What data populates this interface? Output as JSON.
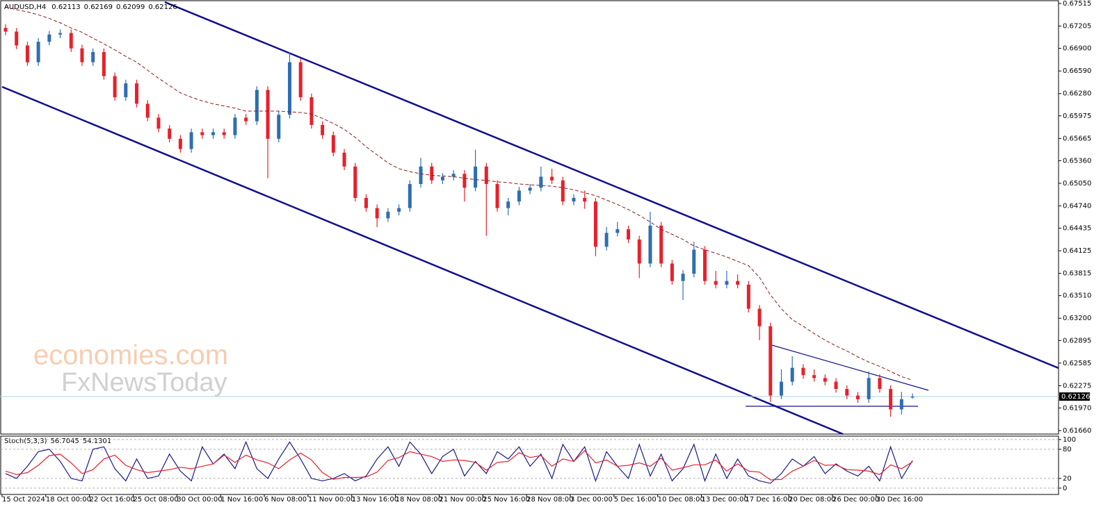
{
  "chart_data": [
    {
      "type": "candlestick",
      "title": "AUDUSD,H4",
      "categories": [
        "15 Oct 2024",
        null,
        null,
        null,
        "18 Oct 00:00",
        null,
        null,
        null,
        "22 Oct 16:00",
        null,
        null,
        null,
        "25 Oct 08:00",
        null,
        null,
        null,
        "30 Oct 00:00",
        null,
        null,
        null,
        "1 Nov 16:00",
        null,
        null,
        null,
        "6 Nov 08:00",
        null,
        null,
        null,
        "11 Nov 00:00",
        null,
        null,
        null,
        "13 Nov 16:00",
        null,
        null,
        null,
        "18 Nov 08:00",
        null,
        null,
        null,
        "21 Nov 00:00",
        null,
        null,
        null,
        "25 Nov 16:00",
        null,
        null,
        null,
        "28 Nov 08:00",
        null,
        null,
        null,
        "3 Dec 00:00",
        null,
        null,
        null,
        "5 Dec 16:00",
        null,
        null,
        null,
        "10 Dec 08:00",
        null,
        null,
        null,
        "13 Dec 00:00",
        null,
        null,
        null,
        "17 Dec 16:00",
        null,
        null,
        null,
        "20 Dec 08:00",
        null,
        null,
        null,
        "26 Dec 00:00",
        null,
        null,
        null,
        "30 Dec 16:00",
        null,
        null,
        null
      ],
      "open": [
        0.6718,
        0.6713,
        0.6694,
        0.6671,
        0.6699,
        0.6709,
        0.6711,
        0.669,
        0.6671,
        0.6685,
        0.6652,
        0.6623,
        0.6642,
        0.6614,
        0.6595,
        0.658,
        0.6566,
        0.6552,
        0.6575,
        0.6571,
        0.6575,
        0.6571,
        0.6595,
        0.659,
        0.6633,
        0.6566,
        0.6599,
        0.6671,
        0.6623,
        0.6585,
        0.6571,
        0.6547,
        0.6528,
        0.6485,
        0.6471,
        0.6457,
        0.6466,
        0.6471,
        0.6504,
        0.6528,
        0.6509,
        0.6514,
        0.6518,
        0.6499,
        0.6528,
        0.6504,
        0.6471,
        0.648,
        0.6495,
        0.6499,
        0.6514,
        0.6509,
        0.648,
        0.6485,
        0.648,
        0.6418,
        0.6437,
        0.6442,
        0.6428,
        0.6395,
        0.6447,
        0.6395,
        0.6371,
        0.6381,
        0.6414,
        0.6371,
        0.6366,
        0.6371,
        0.6366,
        0.6333,
        0.6309,
        0.6214,
        0.6233,
        0.6252,
        0.6242,
        0.6238,
        0.6233,
        0.6223,
        0.6214,
        0.6209,
        0.6238,
        0.6223,
        0.6195,
        0.62113
      ],
      "high": [
        0.6723,
        0.6718,
        0.6699,
        0.6704,
        0.6714,
        0.6716,
        0.6716,
        0.6695,
        0.669,
        0.669,
        0.6657,
        0.6647,
        0.6647,
        0.6619,
        0.66,
        0.6585,
        0.6571,
        0.658,
        0.658,
        0.658,
        0.658,
        0.66,
        0.66,
        0.6638,
        0.6638,
        0.6604,
        0.6685,
        0.6676,
        0.6628,
        0.659,
        0.6576,
        0.6552,
        0.6533,
        0.649,
        0.6476,
        0.6471,
        0.6476,
        0.6509,
        0.654,
        0.6533,
        0.6519,
        0.6523,
        0.6523,
        0.6551,
        0.6533,
        0.6509,
        0.6485,
        0.65,
        0.6504,
        0.6528,
        0.6525,
        0.6514,
        0.649,
        0.6495,
        0.6485,
        0.6445,
        0.6452,
        0.6447,
        0.6433,
        0.6466,
        0.6452,
        0.64,
        0.6386,
        0.6425,
        0.6419,
        0.6385,
        0.6385,
        0.638,
        0.6371,
        0.6338,
        0.6314,
        0.625,
        0.6268,
        0.6257,
        0.625,
        0.6243,
        0.6238,
        0.6228,
        0.6219,
        0.6247,
        0.6243,
        0.6228,
        0.6219,
        0.62169
      ],
      "low": [
        0.6708,
        0.6689,
        0.6666,
        0.6666,
        0.6694,
        0.6704,
        0.6685,
        0.6666,
        0.6666,
        0.6647,
        0.6618,
        0.6618,
        0.6609,
        0.659,
        0.6575,
        0.6561,
        0.6547,
        0.6547,
        0.6566,
        0.6566,
        0.6566,
        0.6566,
        0.6585,
        0.6585,
        0.6512,
        0.6561,
        0.6594,
        0.6618,
        0.658,
        0.6566,
        0.6542,
        0.6523,
        0.648,
        0.6466,
        0.6445,
        0.6452,
        0.6461,
        0.6466,
        0.6499,
        0.6504,
        0.6504,
        0.6509,
        0.648,
        0.6494,
        0.6433,
        0.6466,
        0.6461,
        0.6475,
        0.649,
        0.6494,
        0.6504,
        0.6475,
        0.6475,
        0.647,
        0.6405,
        0.6413,
        0.6432,
        0.6423,
        0.6375,
        0.639,
        0.639,
        0.6366,
        0.6345,
        0.6376,
        0.6366,
        0.6361,
        0.6361,
        0.6361,
        0.6328,
        0.629,
        0.6205,
        0.6209,
        0.6228,
        0.6237,
        0.6233,
        0.6228,
        0.6218,
        0.6209,
        0.6204,
        0.6204,
        0.6218,
        0.6185,
        0.6188,
        0.62099
      ],
      "close": [
        0.6713,
        0.6694,
        0.6671,
        0.6699,
        0.6709,
        0.6711,
        0.669,
        0.6671,
        0.6685,
        0.6652,
        0.6623,
        0.6642,
        0.6614,
        0.6595,
        0.658,
        0.6566,
        0.6552,
        0.6575,
        0.6571,
        0.6575,
        0.6571,
        0.6595,
        0.659,
        0.6633,
        0.6566,
        0.6599,
        0.6671,
        0.6623,
        0.6585,
        0.6571,
        0.6547,
        0.6528,
        0.6485,
        0.6471,
        0.6457,
        0.6466,
        0.6471,
        0.6504,
        0.6528,
        0.6509,
        0.6514,
        0.6518,
        0.6499,
        0.6528,
        0.6504,
        0.6471,
        0.648,
        0.6495,
        0.6499,
        0.6514,
        0.6509,
        0.648,
        0.6485,
        0.648,
        0.6418,
        0.6437,
        0.6442,
        0.6428,
        0.6395,
        0.6447,
        0.6395,
        0.6371,
        0.6381,
        0.6414,
        0.6371,
        0.6366,
        0.6371,
        0.6366,
        0.6333,
        0.6309,
        0.6214,
        0.6233,
        0.6252,
        0.6242,
        0.6238,
        0.6233,
        0.6223,
        0.6214,
        0.6209,
        0.6238,
        0.6223,
        0.6195,
        0.6209,
        0.62126
      ],
      "up_color": "#2f6eb0",
      "down_color": "#e8202a",
      "overlay": {
        "color": "#8b1a1a",
        "values": [
          0.6747,
          0.6743,
          0.674,
          0.6736,
          0.6731,
          0.6725,
          0.6718,
          0.6712,
          0.6704,
          0.6696,
          0.6688,
          0.6679,
          0.6671,
          0.666,
          0.6649,
          0.6639,
          0.6629,
          0.6623,
          0.6618,
          0.6614,
          0.6611,
          0.6608,
          0.6604,
          0.6604,
          0.6604,
          0.6604,
          0.6603,
          0.6602,
          0.66,
          0.6594,
          0.6587,
          0.6579,
          0.6568,
          0.6555,
          0.6544,
          0.6533,
          0.6525,
          0.6521,
          0.6518,
          0.6516,
          0.6515,
          0.6514,
          0.6512,
          0.651,
          0.6509,
          0.6507,
          0.6506,
          0.6504,
          0.6503,
          0.6502,
          0.6501,
          0.6499,
          0.6496,
          0.6492,
          0.6488,
          0.6482,
          0.6476,
          0.6469,
          0.6461,
          0.6452,
          0.6442,
          0.6435,
          0.6428,
          0.6419,
          0.6414,
          0.6409,
          0.6404,
          0.6398,
          0.6392,
          0.6376,
          0.6352,
          0.6333,
          0.6318,
          0.6309,
          0.6299,
          0.629,
          0.6282,
          0.6275,
          0.6267,
          0.626,
          0.6254,
          0.6247,
          0.624,
          0.6235
        ]
      },
      "current_price": 0.62126,
      "ylim": [
        0.61612,
        0.67544
      ],
      "yticks": [
        0.67515,
        0.67205,
        {
          "value": 0.669,
          "label": "0.66900"
        },
        {
          "value": 0.6659,
          "label": "0.66590"
        },
        {
          "value": 0.6628,
          "label": "0.66280"
        },
        0.65975,
        0.65665,
        {
          "value": 0.6536,
          "label": "0.65360"
        },
        {
          "value": 0.6505,
          "label": "0.65050"
        },
        {
          "value": 0.6474,
          "label": "0.64740"
        },
        0.64435,
        0.64125,
        0.63815,
        {
          "value": 0.6351,
          "label": "0.63510"
        },
        {
          "value": 0.632,
          "label": "0.63200"
        },
        0.62895,
        0.62585,
        0.62275,
        {
          "value": 0.6197,
          "label": "0.61970"
        },
        {
          "value": 0.6166,
          "label": "0.61660"
        }
      ],
      "watermark": [
        "economies.com",
        "FxNewsToday"
      ]
    },
    {
      "type": "line",
      "title": "Stoch(5,3,3)",
      "series": [
        {
          "color": "#1a1a8c",
          "values": [
            30,
            20,
            45,
            75,
            80,
            55,
            20,
            15,
            80,
            85,
            40,
            15,
            60,
            20,
            25,
            70,
            35,
            15,
            85,
            50,
            70,
            40,
            95,
            40,
            20,
            60,
            95,
            60,
            20,
            15,
            20,
            30,
            15,
            25,
            60,
            85,
            45,
            95,
            70,
            30,
            65,
            80,
            25,
            55,
            30,
            75,
            60,
            85,
            45,
            70,
            20,
            90,
            55,
            85,
            15,
            75,
            45,
            20,
            90,
            25,
            70,
            15,
            40,
            90,
            15,
            70,
            20,
            60,
            25,
            15,
            10,
            30,
            60,
            45,
            65,
            30,
            50,
            35,
            25,
            45,
            15,
            85,
            20,
            56.7045
          ]
        },
        {
          "color": "#e8202a",
          "values": [
            35,
            28,
            32,
            47,
            67,
            70,
            52,
            30,
            38,
            60,
            68,
            47,
            38,
            32,
            35,
            38,
            43,
            40,
            45,
            50,
            68,
            53,
            68,
            58,
            52,
            40,
            58,
            72,
            58,
            32,
            18,
            22,
            22,
            23,
            33,
            57,
            63,
            75,
            70,
            65,
            55,
            58,
            57,
            53,
            37,
            53,
            55,
            73,
            63,
            67,
            45,
            60,
            55,
            77,
            52,
            58,
            45,
            47,
            52,
            45,
            62,
            37,
            42,
            48,
            48,
            58,
            35,
            50,
            35,
            33,
            17,
            18,
            35,
            45,
            57,
            47,
            48,
            38,
            37,
            35,
            28,
            48,
            40,
            54.1301
          ]
        }
      ],
      "ylim": [
        -13,
        107
      ],
      "yticks": [
        100,
        80,
        20,
        0
      ],
      "grid": true
    }
  ]
}
